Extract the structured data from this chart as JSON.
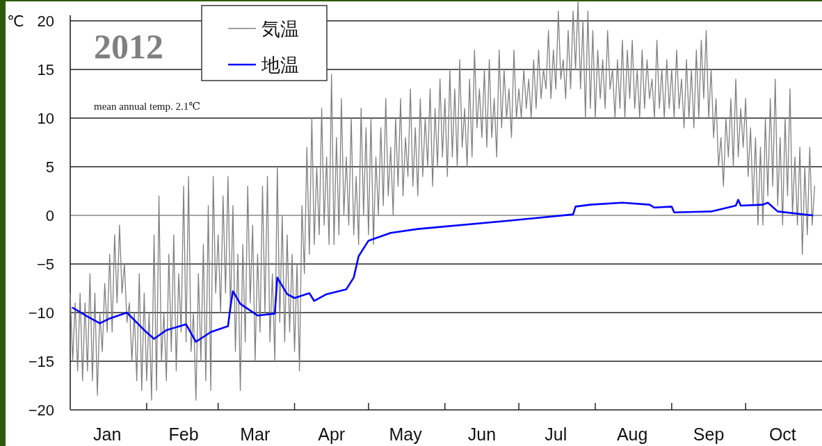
{
  "chart_data": {
    "type": "line",
    "title": "2012",
    "ylabel": "℃",
    "annotations": [
      "mean annual temp.  2.1℃"
    ],
    "xlim": [
      "2012-01-01",
      "2012-10-30"
    ],
    "xticks": [
      {
        "value": "2012-01-16",
        "label": "Jan"
      },
      {
        "value": "2012-02-01",
        "label": null
      },
      {
        "value": "2012-02-16",
        "label": "Feb"
      },
      {
        "value": "2012-03-01",
        "label": null
      },
      {
        "value": "2012-03-16",
        "label": "Mar"
      },
      {
        "value": "2012-04-01",
        "label": null
      },
      {
        "value": "2012-04-16",
        "label": "Apr"
      },
      {
        "value": "2012-05-01",
        "label": null
      },
      {
        "value": "2012-05-16",
        "label": "May"
      },
      {
        "value": "2012-06-01",
        "label": null
      },
      {
        "value": "2012-06-16",
        "label": "Jun"
      },
      {
        "value": "2012-07-01",
        "label": null
      },
      {
        "value": "2012-07-16",
        "label": "Jul"
      },
      {
        "value": "2012-08-01",
        "label": null
      },
      {
        "value": "2012-08-16",
        "label": "Aug"
      },
      {
        "value": "2012-09-01",
        "label": null
      },
      {
        "value": "2012-09-16",
        "label": "Sep"
      },
      {
        "value": "2012-10-01",
        "label": null
      },
      {
        "value": "2012-10-16",
        "label": "Oct"
      }
    ],
    "ylim": [
      -20,
      22
    ],
    "yticks": [
      -20,
      -15,
      -10,
      -5,
      0,
      5,
      10,
      15,
      20
    ],
    "grid": "y",
    "legend": "top",
    "line_style": "solid",
    "marker": "none",
    "series": [
      {
        "name": "気温",
        "color": "#808080",
        "x": [
          "2012-01-01",
          "2012-01-02",
          "2012-01-03",
          "2012-01-04",
          "2012-01-05",
          "2012-01-06",
          "2012-01-07",
          "2012-01-08",
          "2012-01-09",
          "2012-01-10",
          "2012-01-11",
          "2012-01-12",
          "2012-01-13",
          "2012-01-14",
          "2012-01-15",
          "2012-01-16",
          "2012-01-17",
          "2012-01-18",
          "2012-01-19",
          "2012-01-20",
          "2012-01-21",
          "2012-01-22",
          "2012-01-23",
          "2012-01-24",
          "2012-01-25",
          "2012-01-26",
          "2012-01-27",
          "2012-01-28",
          "2012-01-29",
          "2012-01-30",
          "2012-01-31",
          "2012-02-01",
          "2012-02-02",
          "2012-02-03",
          "2012-02-04",
          "2012-02-05",
          "2012-02-06",
          "2012-02-07",
          "2012-02-08",
          "2012-02-09",
          "2012-02-10",
          "2012-02-11",
          "2012-02-12",
          "2012-02-13",
          "2012-02-14",
          "2012-02-15",
          "2012-02-16",
          "2012-02-17",
          "2012-02-18",
          "2012-02-19",
          "2012-02-20",
          "2012-02-21",
          "2012-02-22",
          "2012-02-23",
          "2012-02-24",
          "2012-02-25",
          "2012-02-26",
          "2012-02-27",
          "2012-02-28",
          "2012-02-29",
          "2012-03-01",
          "2012-03-02",
          "2012-03-03",
          "2012-03-04",
          "2012-03-05",
          "2012-03-06",
          "2012-03-07",
          "2012-03-08",
          "2012-03-09",
          "2012-03-10",
          "2012-03-11",
          "2012-03-12",
          "2012-03-13",
          "2012-03-14",
          "2012-03-15",
          "2012-03-16",
          "2012-03-17",
          "2012-03-18",
          "2012-03-19",
          "2012-03-20",
          "2012-03-21",
          "2012-03-22",
          "2012-03-23",
          "2012-03-24",
          "2012-03-25",
          "2012-03-26",
          "2012-03-27",
          "2012-03-28",
          "2012-03-29",
          "2012-03-30",
          "2012-03-31",
          "2012-04-01",
          "2012-04-02",
          "2012-04-03",
          "2012-04-04",
          "2012-04-05",
          "2012-04-06",
          "2012-04-07",
          "2012-04-08",
          "2012-04-09",
          "2012-04-10",
          "2012-04-11",
          "2012-04-12",
          "2012-04-13",
          "2012-04-14",
          "2012-04-15",
          "2012-04-16",
          "2012-04-17",
          "2012-04-18",
          "2012-04-19",
          "2012-04-20",
          "2012-04-21",
          "2012-04-22",
          "2012-04-23",
          "2012-04-24",
          "2012-04-25",
          "2012-04-26",
          "2012-04-27",
          "2012-04-28",
          "2012-04-29",
          "2012-04-30",
          "2012-05-01",
          "2012-05-02",
          "2012-05-03",
          "2012-05-04",
          "2012-05-05",
          "2012-05-06",
          "2012-05-07",
          "2012-05-08",
          "2012-05-09",
          "2012-05-10",
          "2012-05-11",
          "2012-05-12",
          "2012-05-13",
          "2012-05-14",
          "2012-05-15",
          "2012-05-16",
          "2012-05-17",
          "2012-05-18",
          "2012-05-19",
          "2012-05-20",
          "2012-05-21",
          "2012-05-22",
          "2012-05-23",
          "2012-05-24",
          "2012-05-25",
          "2012-05-26",
          "2012-05-27",
          "2012-05-28",
          "2012-05-29",
          "2012-05-30",
          "2012-05-31",
          "2012-06-01",
          "2012-06-02",
          "2012-06-03",
          "2012-06-04",
          "2012-06-05",
          "2012-06-06",
          "2012-06-07",
          "2012-06-08",
          "2012-06-09",
          "2012-06-10",
          "2012-06-11",
          "2012-06-12",
          "2012-06-13",
          "2012-06-14",
          "2012-06-15",
          "2012-06-16",
          "2012-06-17",
          "2012-06-18",
          "2012-06-19",
          "2012-06-20",
          "2012-06-21",
          "2012-06-22",
          "2012-06-23",
          "2012-06-24",
          "2012-06-25",
          "2012-06-26",
          "2012-06-27",
          "2012-06-28",
          "2012-06-29",
          "2012-06-30",
          "2012-07-01",
          "2012-07-02",
          "2012-07-03",
          "2012-07-04",
          "2012-07-05",
          "2012-07-06",
          "2012-07-07",
          "2012-07-08",
          "2012-07-09",
          "2012-07-10",
          "2012-07-11",
          "2012-07-12",
          "2012-07-13",
          "2012-07-14",
          "2012-07-15",
          "2012-07-16",
          "2012-07-17",
          "2012-07-18",
          "2012-07-19",
          "2012-07-20",
          "2012-07-21",
          "2012-07-22",
          "2012-07-23",
          "2012-07-24",
          "2012-07-25",
          "2012-07-26",
          "2012-07-27",
          "2012-07-28",
          "2012-07-29",
          "2012-07-30",
          "2012-07-31",
          "2012-08-01",
          "2012-08-02",
          "2012-08-03",
          "2012-08-04",
          "2012-08-05",
          "2012-08-06",
          "2012-08-07",
          "2012-08-08",
          "2012-08-09",
          "2012-08-10",
          "2012-08-11",
          "2012-08-12",
          "2012-08-13",
          "2012-08-14",
          "2012-08-15",
          "2012-08-16",
          "2012-08-17",
          "2012-08-18",
          "2012-08-19",
          "2012-08-20",
          "2012-08-21",
          "2012-08-22",
          "2012-08-23",
          "2012-08-24",
          "2012-08-25",
          "2012-08-26",
          "2012-08-27",
          "2012-08-28",
          "2012-08-29",
          "2012-08-30",
          "2012-08-31",
          "2012-09-01",
          "2012-09-02",
          "2012-09-03",
          "2012-09-04",
          "2012-09-05",
          "2012-09-06",
          "2012-09-07",
          "2012-09-08",
          "2012-09-09",
          "2012-09-10",
          "2012-09-11",
          "2012-09-12",
          "2012-09-13",
          "2012-09-14",
          "2012-09-15",
          "2012-09-16",
          "2012-09-17",
          "2012-09-18",
          "2012-09-19",
          "2012-09-20",
          "2012-09-21",
          "2012-09-22",
          "2012-09-23",
          "2012-09-24",
          "2012-09-25",
          "2012-09-26",
          "2012-09-27",
          "2012-09-28",
          "2012-09-29",
          "2012-09-30",
          "2012-10-01",
          "2012-10-02",
          "2012-10-03",
          "2012-10-04",
          "2012-10-05",
          "2012-10-06",
          "2012-10-07",
          "2012-10-08",
          "2012-10-09",
          "2012-10-10",
          "2012-10-11",
          "2012-10-12",
          "2012-10-13",
          "2012-10-14",
          "2012-10-15",
          "2012-10-16",
          "2012-10-17",
          "2012-10-18",
          "2012-10-19",
          "2012-10-20",
          "2012-10-21",
          "2012-10-22",
          "2012-10-23",
          "2012-10-24",
          "2012-10-25",
          "2012-10-26",
          "2012-10-27",
          "2012-10-28",
          "2012-10-29"
        ],
        "values": [
          -8,
          -15,
          -9,
          -16,
          -8,
          -17,
          -9,
          -16,
          -6,
          -17,
          -8,
          -18.5,
          -10,
          -14,
          -7,
          -12,
          -4,
          -12,
          -2,
          -9,
          -1,
          -8,
          -5,
          -11,
          -9,
          -15,
          -10,
          -17,
          -6,
          -18,
          -8,
          -17,
          -10,
          -19,
          -2,
          -18,
          2,
          -15,
          -10,
          -17,
          -4,
          -14,
          -2,
          -16,
          -6,
          -12,
          3,
          -13,
          4,
          -14,
          -10,
          -19,
          -6,
          -15,
          -3,
          -17,
          1,
          -18,
          4,
          -8,
          -2,
          -10,
          2,
          -8,
          4,
          -10,
          1,
          -14,
          -4,
          -18,
          -3,
          -13,
          3,
          -9,
          -1,
          -15,
          -4,
          -12,
          3,
          -10,
          4,
          -13,
          -6,
          -15,
          5,
          -11,
          0,
          -13,
          -2,
          -12,
          -4,
          -14,
          -5,
          -16,
          1,
          -6,
          7,
          -4,
          10,
          -3,
          5,
          -2,
          11,
          -1,
          6,
          -3,
          14.5,
          -3,
          8,
          -2,
          12,
          0,
          6,
          -1,
          10,
          -2,
          4,
          -3,
          11,
          0,
          9,
          -2,
          10,
          -3,
          6,
          0,
          9,
          1,
          12,
          2,
          7,
          0,
          10,
          3,
          12,
          2,
          8,
          4,
          13,
          3,
          9,
          2,
          12,
          4,
          10,
          5,
          13,
          3,
          11,
          5,
          14,
          6,
          12,
          4,
          15,
          6,
          13,
          5,
          16,
          7,
          11,
          5,
          14,
          6,
          17,
          9,
          13,
          8,
          15,
          7,
          16,
          8,
          12,
          6,
          17,
          9,
          15,
          10,
          13,
          8,
          17,
          10,
          13,
          10,
          15,
          11,
          14,
          10,
          16,
          11,
          17,
          12,
          15,
          13,
          19,
          12,
          17,
          13,
          21,
          14,
          16,
          12,
          19,
          13,
          21,
          15,
          22,
          13,
          20,
          10,
          21,
          11,
          19,
          10,
          17,
          12,
          16,
          11,
          19,
          13,
          15,
          10,
          16,
          11,
          18,
          10,
          17,
          12,
          18,
          11,
          15,
          10,
          17,
          11,
          16,
          12,
          14,
          10,
          18,
          11,
          15,
          10,
          16,
          11,
          15,
          10,
          17,
          11,
          14,
          9,
          16,
          10,
          15,
          9,
          17,
          10,
          18,
          12,
          19,
          10,
          15,
          8,
          12,
          5,
          8,
          3,
          10,
          6,
          12,
          5,
          14,
          6,
          11,
          7,
          12,
          4,
          9,
          1,
          8,
          -1,
          7,
          -1,
          10,
          2,
          12,
          3,
          14,
          1,
          8,
          -1,
          10,
          2,
          13,
          0,
          6,
          -1,
          7,
          -4,
          5,
          -2,
          7,
          -1,
          3
        ]
      },
      {
        "name": "地温",
        "color": "#0000ff",
        "x": [
          "2012-01-02",
          "2012-01-08",
          "2012-01-13",
          "2012-01-17",
          "2012-01-24",
          "2012-01-31",
          "2012-02-04",
          "2012-02-09",
          "2012-02-17",
          "2012-02-21",
          "2012-02-27",
          "2012-03-05",
          "2012-03-06",
          "2012-03-07",
          "2012-03-10",
          "2012-03-17",
          "2012-03-24",
          "2012-03-25",
          "2012-03-29",
          "2012-04-01",
          "2012-04-07",
          "2012-04-09",
          "2012-04-14",
          "2012-04-22",
          "2012-04-25",
          "2012-04-27",
          "2012-05-01",
          "2012-05-10",
          "2012-05-21",
          "2012-06-29",
          "2012-07-23",
          "2012-07-24",
          "2012-07-30",
          "2012-08-12",
          "2012-08-23",
          "2012-08-25",
          "2012-09-01",
          "2012-09-02",
          "2012-09-17",
          "2012-09-27",
          "2012-09-28",
          "2012-09-29",
          "2012-10-08",
          "2012-10-10",
          "2012-10-14",
          "2012-10-28"
        ],
        "values": [
          -9.5,
          -10.4,
          -11.1,
          -10.6,
          -10,
          -11.8,
          -12.7,
          -11.8,
          -11.2,
          -13,
          -12,
          -11.4,
          -9.4,
          -7.8,
          -9.1,
          -10.3,
          -10.1,
          -6.4,
          -8.1,
          -8.5,
          -8,
          -8.8,
          -8.1,
          -7.6,
          -6.4,
          -4.2,
          -2.6,
          -1.8,
          -1.4,
          -0.5,
          0.1,
          0.9,
          1.1,
          1.3,
          1.1,
          0.8,
          0.9,
          0.3,
          0.4,
          1,
          1.6,
          1,
          1.1,
          1.3,
          0.4,
          0
        ]
      }
    ]
  }
}
